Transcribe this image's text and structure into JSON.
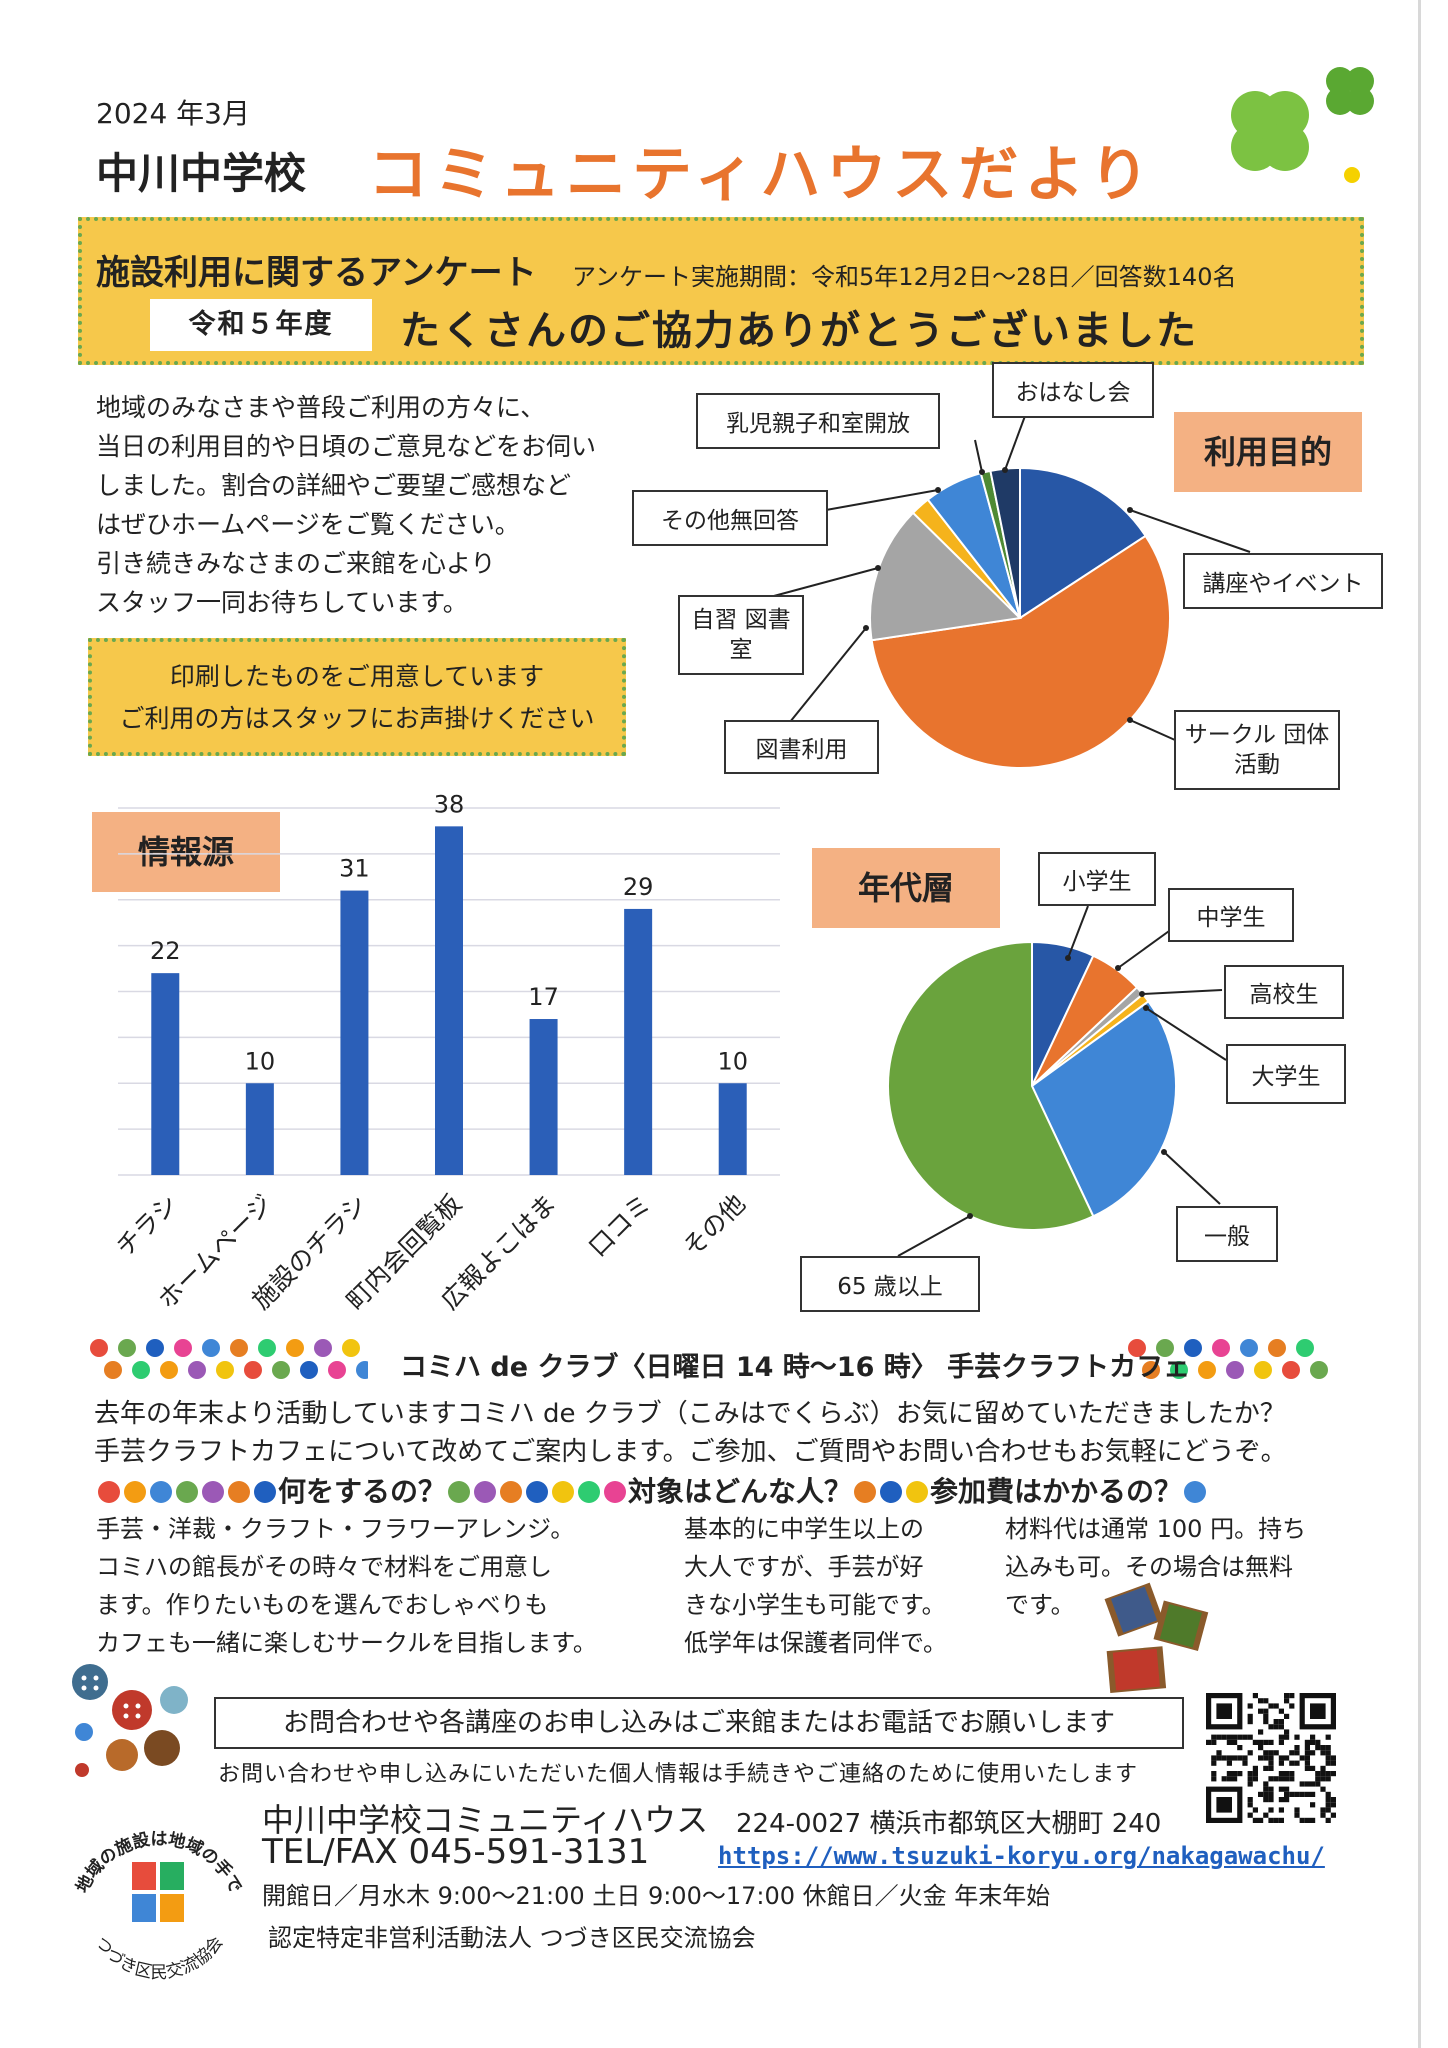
{
  "header": {
    "date": "2024 年3月",
    "school": "中川中学校",
    "title": "コミュニティハウスだより"
  },
  "survey": {
    "title": "施設利用に関するアンケート",
    "period": "アンケート実施期間：令和5年12月2日～28日／回答数140名",
    "badge": "令和５年度",
    "thanks": "たくさんのご協力ありがとうございました"
  },
  "intro": {
    "lines": [
      "地域のみなさまや普段ご利用の方々に、",
      "当日の利用目的や日頃のご意見などをお伺い",
      "しました。割合の詳細やご要望ご感想など",
      "はぜひホームページをご覧ください。",
      "引き続きみなさまのご来館を心より",
      "スタッフ一同お待ちしています。"
    ]
  },
  "notice": {
    "line1": "印刷したものをご用意しています",
    "line2": "ご利用の方はスタッフにお声掛けください"
  },
  "chart_data": [
    {
      "type": "pie",
      "title": "利用目的",
      "labels": [
        "講座やイベント",
        "サークル 団体活動",
        "図書利用",
        "自習 図書室",
        "その他無回答",
        "乳児親子和室開放",
        "おはなし会"
      ],
      "values": [
        15,
        54,
        14,
        2,
        6,
        1,
        3
      ],
      "colors": [
        "#2757a6",
        "#e8742e",
        "#a5a5a5",
        "#f5b31c",
        "#3f86d6",
        "#4e8a34",
        "#1f3a66"
      ]
    },
    {
      "type": "bar",
      "title": "情報源",
      "categories": [
        "チラシ",
        "ホームページ",
        "施設のチラシ",
        "町内会回覧板",
        "広報よこはま",
        "口コミ",
        "その他"
      ],
      "values": [
        22,
        10,
        31,
        38,
        17,
        29,
        10
      ],
      "ylim": [
        0,
        40
      ],
      "color": "#2b5fb8",
      "grid": true
    },
    {
      "type": "pie",
      "title": "年代層",
      "labels": [
        "小学生",
        "中学生",
        "高校生",
        "大学生",
        "一般",
        "65 歳以上"
      ],
      "values": [
        7,
        6,
        1,
        1,
        28,
        57
      ],
      "colors": [
        "#2757a6",
        "#e8742e",
        "#a5a5a5",
        "#f5b31c",
        "#3f86d6",
        "#6aa33d"
      ]
    }
  ],
  "club": {
    "title": "コミハ de クラブ〈日曜日 14 時～16 時〉 手芸クラフトカフェ",
    "desc1": "去年の年末より活動していますコミハ de クラブ（こみはでくらぶ）お気に留めていただきましたか？",
    "desc2": "手芸クラフトカフェについて改めてご案内します。ご参加、ご質問やお問い合わせもお気軽にどうぞ。",
    "q1": "何をするの？",
    "q2": "対象はどんな人？",
    "q3": "参加費はかかるの？",
    "col1": [
      "手芸・洋裁・クラフト・フラワーアレンジ。",
      "コミハの館長がその時々で材料をご用意し",
      "ます。作りたいものを選んでおしゃべりも",
      "カフェも一緒に楽しむサークルを目指します。"
    ],
    "col2": [
      "基本的に中学生以上の",
      "大人ですが、手芸が好",
      "きな小学生も可能です。",
      "低学年は保護者同伴で。"
    ],
    "col3": [
      "材料代は通常 100 円。持ち",
      "込みも可。その場合は無料",
      "です。"
    ]
  },
  "footer": {
    "contact": "お問合わせや各講座のお申し込みはご来館またはお電話でお願いします",
    "privacy": "お問い合わせや申し込みにいただいた個人情報は手続きやご連絡のために使用いたします",
    "org": "中川中学校コミュニティハウス",
    "address": "224-0027 横浜市都筑区大棚町 240",
    "tel": "TEL/FAX 045-591-3131",
    "url": "https://www.tsuzuki-koryu.org/nakagawachu/",
    "hours": "開館日／月水木 9:00～21:00 土日 9:00～17:00 休館日／火金 年末年始",
    "npo": "認定特定非営利活動法人 つづき区民交流協会",
    "logo_top": "地域の施設は地域の手で",
    "logo_bottom": "つづき区民交流協会"
  },
  "icons": {
    "clover": "clover-icon",
    "buttons": "sewing-buttons-icon",
    "spools": "thread-spools-icon",
    "qr": "qr-code-icon"
  }
}
